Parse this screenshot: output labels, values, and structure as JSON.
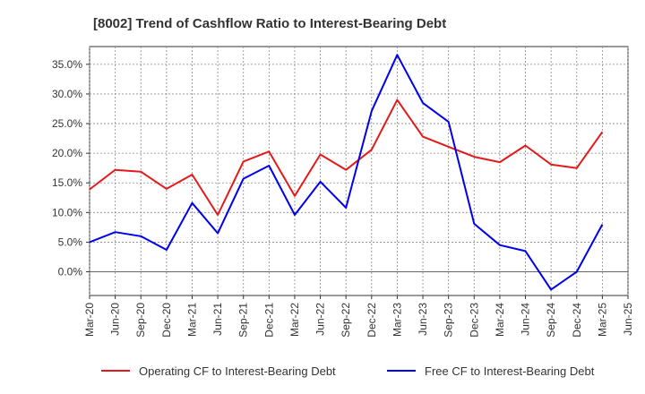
{
  "chart_data": {
    "type": "line",
    "title": "[8002]  Trend of Cashflow Ratio to Interest-Bearing Debt",
    "xlabel": "",
    "ylabel": "",
    "x": [
      "Mar-20",
      "Jun-20",
      "Sep-20",
      "Dec-20",
      "Mar-21",
      "Jun-21",
      "Sep-21",
      "Dec-21",
      "Mar-22",
      "Jun-22",
      "Sep-22",
      "Dec-22",
      "Mar-23",
      "Jun-23",
      "Sep-23",
      "Dec-23",
      "Mar-24",
      "Jun-24",
      "Sep-24",
      "Dec-24",
      "Mar-25",
      "Jun-25"
    ],
    "ylim": [
      -4,
      38
    ],
    "yticks": [
      0,
      5,
      10,
      15,
      20,
      25,
      30,
      35
    ],
    "ytick_labels": [
      "0.0%",
      "5.0%",
      "10.0%",
      "15.0%",
      "20.0%",
      "25.0%",
      "30.0%",
      "35.0%"
    ],
    "grid": true,
    "legend_position": "bottom",
    "series": [
      {
        "name": "Operating CF to Interest-Bearing Debt",
        "color": "#e31a1c",
        "values": [
          13.9,
          17.2,
          16.9,
          14.0,
          16.4,
          9.6,
          18.6,
          20.3,
          12.8,
          19.8,
          17.2,
          20.6,
          29.0,
          22.8,
          21.1,
          19.4,
          18.5,
          21.3,
          18.1,
          17.5,
          23.6,
          null
        ]
      },
      {
        "name": "Free CF to Interest-Bearing Debt",
        "color": "#0000ee",
        "values": [
          5.0,
          6.7,
          6.0,
          3.7,
          11.6,
          6.5,
          15.7,
          17.9,
          9.6,
          15.2,
          10.8,
          27.1,
          36.6,
          28.5,
          25.3,
          8.1,
          4.5,
          3.5,
          -3.0,
          0.0,
          8.0,
          null
        ]
      }
    ]
  }
}
